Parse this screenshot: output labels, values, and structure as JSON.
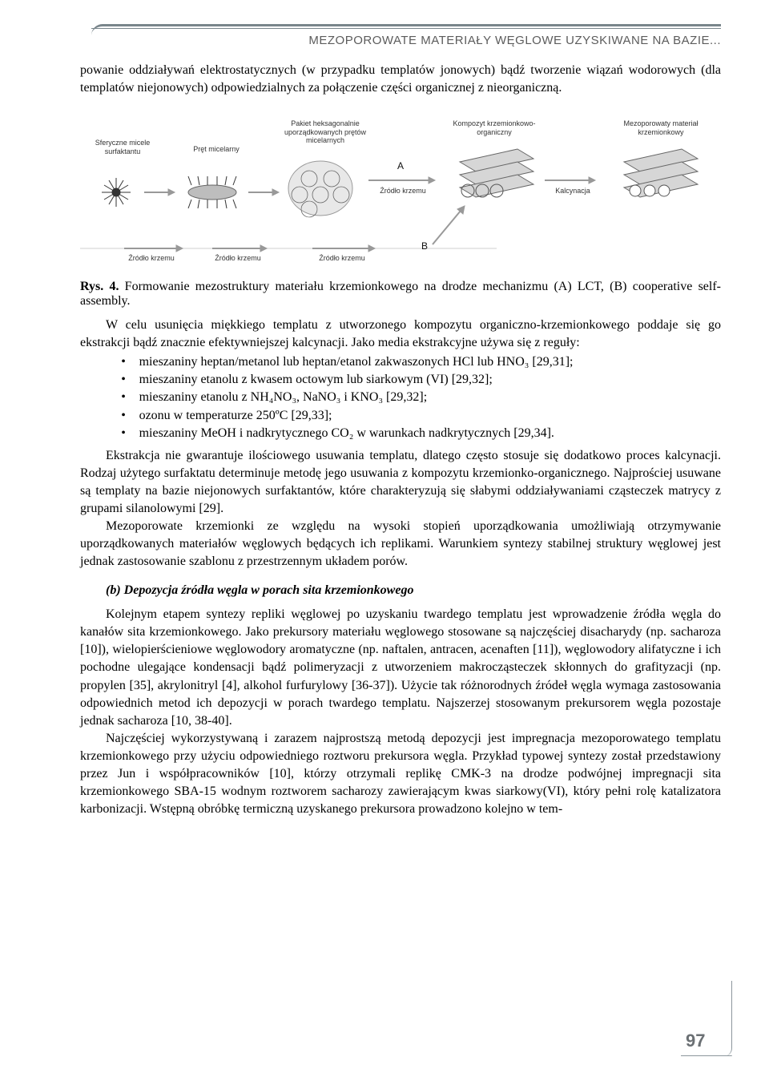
{
  "header": {
    "running_title": "MEZOPOROWATE MATERIAŁY WĘGLOWE UZYSKIWANE NA BAZIE..."
  },
  "intro_para": "powanie oddziaływań elektrostatycznych (w przypadku templatów jonowych) bądź tworzenie wiązań wodorowych (dla templatów niejonowych) odpowiedzialnych za połączenie części organicznej z nieorganiczną.",
  "diagram": {
    "type": "flowchart",
    "labels": {
      "micelle": "Sferyczne micele\nsurfaktantu",
      "rod": "Pręt micelarny",
      "packet": "Pakiet heksagonalnie\nuporządkowanych prętów\nmicelarnych",
      "composite": "Kompozyt krzemionkowo-\norganiczny",
      "mesoporous": "Mezoporowaty materiał\nkrzemionkowy",
      "source_A": "Źródło krzemu",
      "source_B_left": "Źródło krzemu",
      "source_B_mid": "Źródło krzemu",
      "source_B_right": "Źródło krzemu",
      "calcination": "Kalcynacja",
      "A": "A",
      "B": "B"
    },
    "colors": {
      "shape": "#d0d0d0",
      "stroke": "#444444",
      "bg": "#ffffff",
      "frame": "#aaaaaa"
    }
  },
  "figcap_bold": "Rys. 4.",
  "figcap_rest": " Formowanie mezostruktury materiału krzemionkowego na drodze mechanizmu (A) LCT, (B) cooperative self-assembly.",
  "para_after_fig": "W celu usunięcia miękkiego templatu z utworzonego kompozytu organiczno-krzemionkowego poddaje się go ekstrakcji bądź znacznie efektywniejszej kalcynacji. Jako media ekstrakcyjne używa się z reguły:",
  "bullets": [
    "mieszaniny heptan/metanol lub heptan/etanol zakwaszonych HCl lub HNO₃ [29,31];",
    "mieszaniny etanolu z kwasem octowym lub siarkowym (VI) [29,32];",
    "mieszaniny etanolu z NH₄NO₃, NaNO₃ i KNO₃ [29,32];",
    "ozonu w temperaturze 250ºC [29,33];",
    "mieszaniny MeOH i nadkrytycznego CO₂ w warunkach nadkrytycznych [29,34]."
  ],
  "para_after_bullets1": "Ekstrakcja nie gwarantuje ilościowego usuwania templatu, dlatego często stosuje się dodatkowo proces kalcynacji. Rodzaj użytego surfaktatu determinuje metodę jego usuwania z kompozytu krzemionko-organicznego. Najprościej usuwane są templaty na bazie niejonowych surfaktantów, które charakteryzują się słabymi oddziaływaniami cząsteczek matrycy z grupami silanolowymi [29].",
  "para_after_bullets2": "Mezoporowate krzemionki ze względu na wysoki stopień uporządkowania umożliwiają otrzymywanie uporządkowanych materiałów węglowych będących ich replikami. Warunkiem syntezy stabilnej struktury węglowej jest jednak zastosowanie szablonu z przestrzennym układem porów.",
  "subhead": "(b) Depozycja źródła węgla w porach sita krzemionkowego",
  "para_b1": "Kolejnym etapem syntezy repliki węglowej po uzyskaniu twardego templatu jest wprowadzenie źródła węgla do kanałów sita krzemionkowego. Jako prekursory materiału węglowego stosowane są najczęściej disacharydy (np. sacharoza [10]), wielopierścieniowe węglowodory aromatyczne (np. naftalen, antracen, acenaften [11]), węglowodory alifatyczne i ich pochodne ulegające kondensacji bądź polimeryzacji z utworzeniem makrocząsteczek skłonnych do grafityzacji (np. propylen [35], akrylonitryl [4], alkohol furfurylowy [36-37]). Użycie tak różnorodnych źródeł węgla wymaga zastosowania odpowiednich metod ich depozycji w porach twardego templatu. Najszerzej stosowanym prekursorem węgla pozostaje jednak sacharoza [10, 38-40].",
  "para_b2": "Najczęściej wykorzystywaną i zarazem najprostszą metodą depozycji jest impregnacja mezoporowatego templatu krzemionkowego przy użyciu odpowiedniego roztworu prekursora węgla. Przykład typowej syntezy został przedstawiony przez Jun i współpracowników [10], którzy otrzymali replikę CMK-3 na drodze podwójnej impregnacji sita krzemionkowego SBA-15 wodnym roztworem sacharozy zawierającym kwas siarkowy(VI), który pełni rolę katalizatora karbonizacji. Wstępną obróbkę termiczną uzyskanego prekursora prowadzono kolejno w tem-",
  "page_number": "97",
  "style": {
    "header_rule": "#7a868c",
    "text_color": "#000000",
    "pagenum_color": "#6b7074",
    "body_fontsize_pt": 12,
    "header_fontsize_pt": 11
  }
}
